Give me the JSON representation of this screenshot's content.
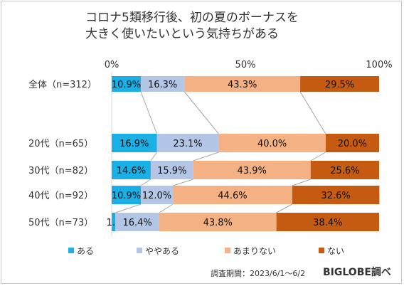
{
  "title_lines": [
    "コロナ5類移行後、初の夏のボーナスを",
    "大きく使いたいという気持ちがある"
  ],
  "footer": {
    "period": "調査期間：2023/6/1～6/2",
    "source": "BIGLOBE調べ"
  },
  "colors": {
    "series": [
      "#1ab0e6",
      "#b3c6e6",
      "#f4b183",
      "#c55a11"
    ],
    "connector": "#a6a6a6",
    "text": "#333333",
    "axis": "#d9d9d9"
  },
  "chart_data": {
    "type": "bar",
    "orientation": "horizontal",
    "stacked": "percent",
    "categories": [
      "全体（n=312）",
      "20代（n=65）",
      "30代（n=82）",
      "40代（n=92）",
      "50代（n=73）"
    ],
    "series": [
      {
        "name": "ある",
        "values": [
          10.9,
          16.9,
          14.6,
          10.9,
          1.4
        ],
        "labels": [
          "10.9%",
          "16.9%",
          "14.6%",
          "10.9%",
          "1.4%"
        ]
      },
      {
        "name": "ややある",
        "values": [
          16.3,
          23.1,
          15.9,
          12.0,
          16.4
        ],
        "labels": [
          "16.3%",
          "23.1%",
          "15.9%",
          "12.0%",
          "16.4%"
        ]
      },
      {
        "name": "あまりない",
        "values": [
          43.3,
          40.0,
          43.9,
          44.6,
          43.8
        ],
        "labels": [
          "43.3%",
          "40.0%",
          "43.9%",
          "44.6%",
          "43.8%"
        ]
      },
      {
        "name": "ない",
        "values": [
          29.5,
          20.0,
          25.6,
          32.6,
          38.4
        ],
        "labels": [
          "29.5%",
          "20.0%",
          "25.6%",
          "32.6%",
          "38.4%"
        ]
      }
    ],
    "xlim": [
      0,
      100
    ],
    "x_ticks": [
      "0%",
      "50%",
      "100%"
    ],
    "series_lines": true,
    "legend": "bottom"
  }
}
